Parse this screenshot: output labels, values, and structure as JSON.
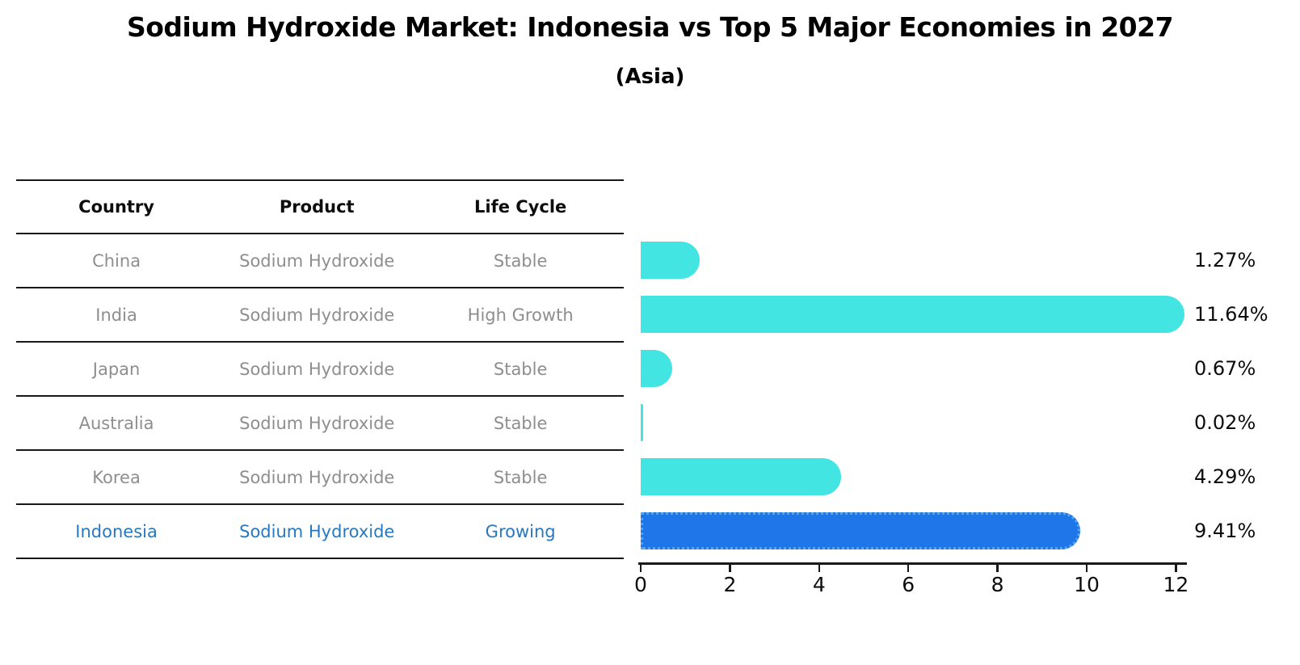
{
  "chart_data": {
    "type": "bar",
    "orientation": "horizontal",
    "title": "Sodium Hydroxide Market: Indonesia vs Top 5 Major Economies in 2027",
    "subtitle": "(Asia)",
    "categories": [
      "China",
      "India",
      "Japan",
      "Australia",
      "Korea",
      "Indonesia"
    ],
    "values": [
      1.27,
      11.64,
      0.67,
      0.02,
      4.29,
      9.41
    ],
    "value_labels": [
      "1.27%",
      "11.64%",
      "0.67%",
      "0.02%",
      "4.29%",
      "9.41%"
    ],
    "x_ticks": [
      0,
      2,
      4,
      6,
      8,
      10,
      12
    ],
    "x_tick_labels": [
      "0",
      "2",
      "4",
      "6",
      "8",
      "10",
      "12"
    ],
    "xlim": [
      0,
      12
    ],
    "xlabel": "",
    "ylabel": "",
    "grid": false,
    "legend": false,
    "bar_color": "#42e5e1",
    "highlight_index": 5,
    "highlight_bar_color": "#1e76e8",
    "highlight_border_color": "#55a4f0"
  },
  "table": {
    "headers": [
      "Country",
      "Product",
      "Life Cycle"
    ],
    "rows": [
      {
        "country": "China",
        "product": "Sodium Hydroxide",
        "life_cycle": "Stable",
        "highlight": false
      },
      {
        "country": "India",
        "product": "Sodium Hydroxide",
        "life_cycle": "High Growth",
        "highlight": false
      },
      {
        "country": "Japan",
        "product": "Sodium Hydroxide",
        "life_cycle": "Stable",
        "highlight": false
      },
      {
        "country": "Australia",
        "product": "Sodium Hydroxide",
        "life_cycle": "Stable",
        "highlight": false
      },
      {
        "country": "Korea",
        "product": "Sodium Hydroxide",
        "life_cycle": "Stable",
        "highlight": false
      },
      {
        "country": "Indonesia",
        "product": "Sodium Hydroxide",
        "life_cycle": "Growing",
        "highlight": true
      }
    ]
  },
  "colors": {
    "text_primary": "#000000",
    "text_muted": "#8e8e8e",
    "text_highlight": "#2878c0",
    "line": "#191919"
  }
}
